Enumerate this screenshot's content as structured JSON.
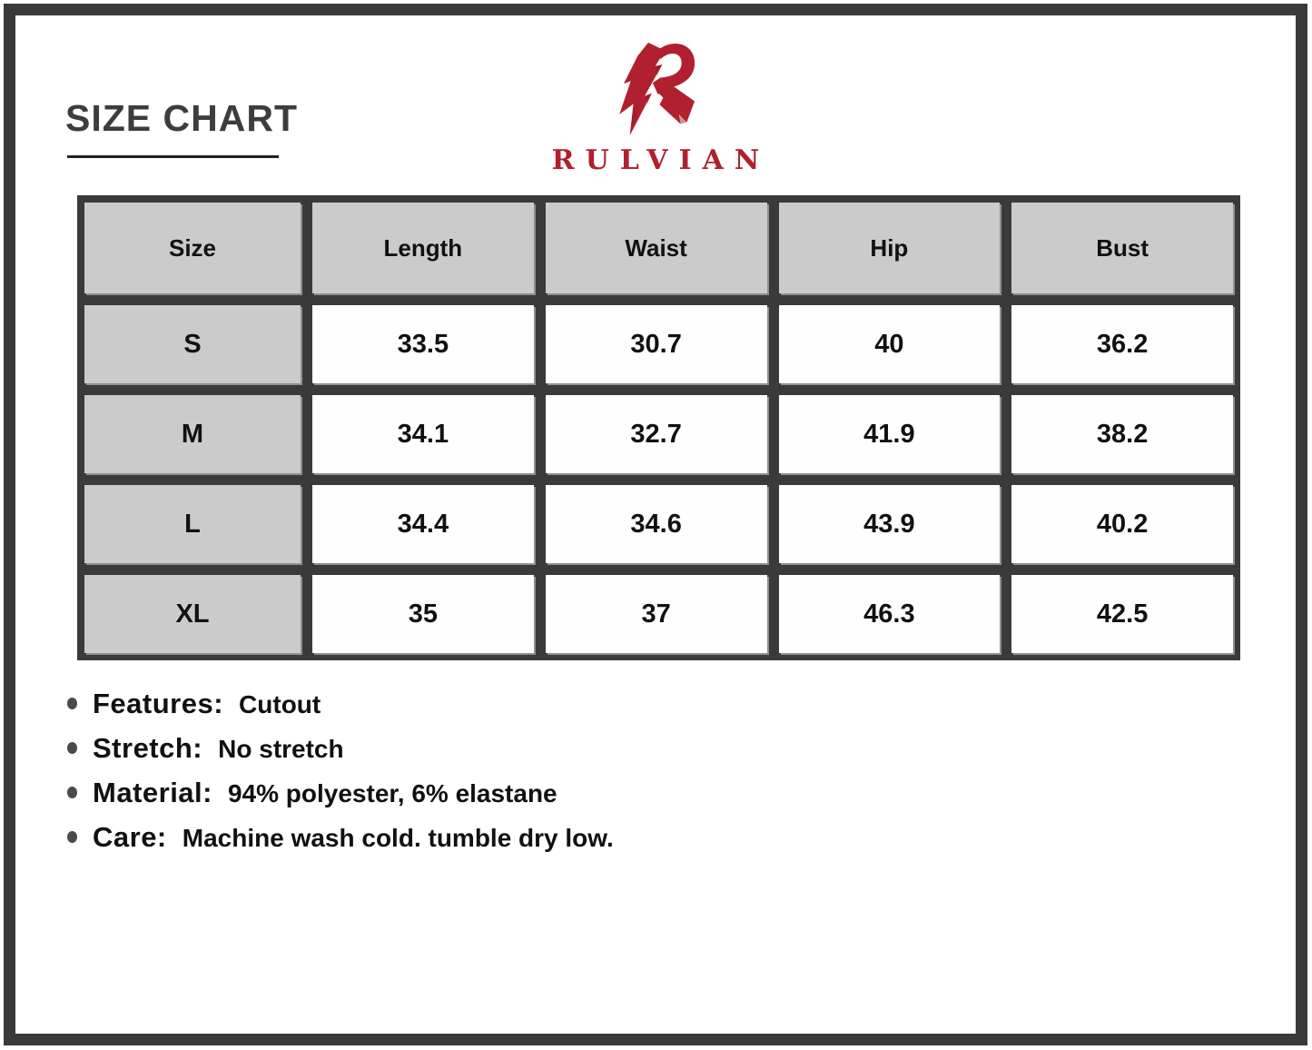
{
  "page_title": "SIZE CHART",
  "brand": {
    "name": "RULVIAN",
    "logo_icon": "angular-r-monogram"
  },
  "size_table": {
    "columns": [
      "Size",
      "Length",
      "Waist",
      "Hip",
      "Bust"
    ],
    "rows": [
      {
        "size": "S",
        "values": [
          "33.5",
          "30.7",
          "40",
          "36.2"
        ]
      },
      {
        "size": "M",
        "values": [
          "34.1",
          "32.7",
          "41.9",
          "38.2"
        ]
      },
      {
        "size": "L",
        "values": [
          "34.4",
          "34.6",
          "43.9",
          "40.2"
        ]
      },
      {
        "size": "XL",
        "values": [
          "35",
          "37",
          "46.3",
          "42.5"
        ]
      }
    ]
  },
  "details": [
    {
      "label": "Features:",
      "value": "Cutout"
    },
    {
      "label": "Stretch:",
      "value": "No stretch"
    },
    {
      "label": "Material:",
      "value": "94% polyester, 6% elastane"
    },
    {
      "label": "Care:",
      "value": "Machine wash cold. tumble dry low."
    }
  ],
  "colors": {
    "brand_red": "#B1202E",
    "frame_dark": "#3A3A3A",
    "header_gray": "#CBCBCB"
  }
}
